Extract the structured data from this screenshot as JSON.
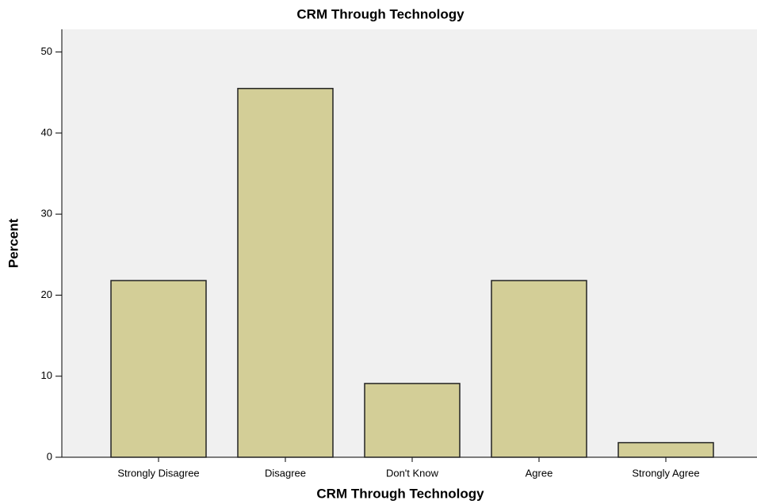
{
  "chart_data": {
    "type": "bar",
    "title": "CRM Through Technology",
    "x_label": "CRM Through Technology",
    "y_label": "Percent",
    "categories": [
      "Strongly Disagree",
      "Disagree",
      "Don't Know",
      "Agree",
      "Strongly Agree"
    ],
    "values": [
      21.8,
      45.5,
      9.1,
      21.8,
      1.8
    ],
    "color": "#d3ce97",
    "ylim": [
      0,
      52.8
    ],
    "yticks": [
      0,
      10,
      20,
      30,
      40,
      50
    ],
    "grid": false
  }
}
